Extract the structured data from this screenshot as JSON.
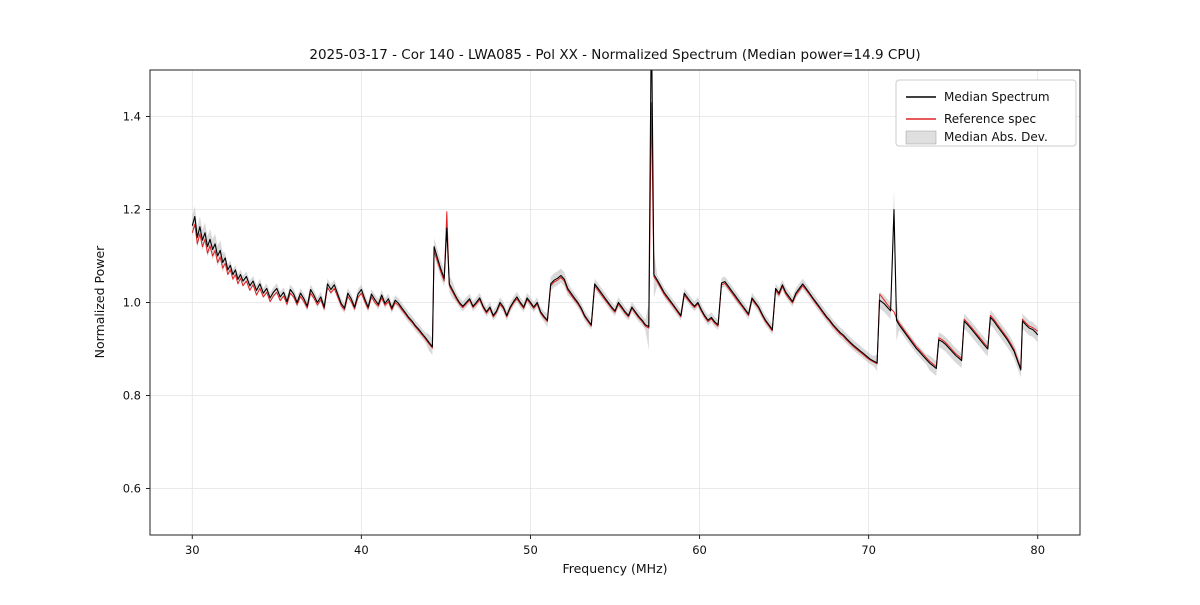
{
  "chart_data": {
    "type": "line",
    "title": "2025-03-17 - Cor 140 - LWA085 - Pol XX - Normalized Spectrum (Median power=14.9 CPU)",
    "xlabel": "Frequency (MHz)",
    "ylabel": "Normalized Power",
    "xlim": [
      27.5,
      82.5
    ],
    "ylim": [
      0.5,
      1.5
    ],
    "xticks": [
      30,
      40,
      50,
      60,
      70,
      80
    ],
    "yticks": [
      0.6,
      0.8,
      1.0,
      1.2,
      1.4
    ],
    "grid": true,
    "colors": {
      "median": "#000000",
      "reference": "#e02222",
      "band": "#b9b9b9",
      "grid": "#e3e3e3"
    },
    "legend": {
      "position": "upper right",
      "entries": [
        {
          "label": "Median Spectrum",
          "color": "#000000",
          "type": "line"
        },
        {
          "label": "Reference spec",
          "color": "#e02222",
          "type": "line"
        },
        {
          "label": "Median Abs. Dev.",
          "color": "#c9c9c9",
          "type": "patch"
        }
      ]
    },
    "mad_default": 0.011,
    "mad_segments": [
      [
        29.5,
        31.8,
        0.022
      ],
      [
        44.0,
        45.5,
        0.018
      ],
      [
        51.0,
        52.3,
        0.015
      ],
      [
        57.0,
        57.4,
        0.05
      ],
      [
        70.5,
        71.3,
        0.018
      ],
      [
        71.3,
        71.7,
        0.045
      ],
      [
        73.5,
        80.5,
        0.016
      ]
    ],
    "points": [
      [
        30.0,
        1.165,
        1.15
      ],
      [
        30.15,
        1.185,
        1.168
      ],
      [
        30.3,
        1.14,
        1.126
      ],
      [
        30.45,
        1.163,
        1.148
      ],
      [
        30.6,
        1.134,
        1.12
      ],
      [
        30.75,
        1.15,
        1.136
      ],
      [
        30.9,
        1.12,
        1.106
      ],
      [
        31.05,
        1.136,
        1.122
      ],
      [
        31.2,
        1.114,
        1.1
      ],
      [
        31.35,
        1.126,
        1.112
      ],
      [
        31.5,
        1.1,
        1.086
      ],
      [
        31.65,
        1.112,
        1.098
      ],
      [
        31.8,
        1.086,
        1.074
      ],
      [
        31.95,
        1.096,
        1.084
      ],
      [
        32.1,
        1.07,
        1.06
      ],
      [
        32.25,
        1.08,
        1.07
      ],
      [
        32.4,
        1.06,
        1.05
      ],
      [
        32.55,
        1.07,
        1.06
      ],
      [
        32.7,
        1.05,
        1.04
      ],
      [
        32.85,
        1.06,
        1.052
      ],
      [
        33.0,
        1.046,
        1.036
      ],
      [
        33.2,
        1.056,
        1.046
      ],
      [
        33.4,
        1.036,
        1.026
      ],
      [
        33.6,
        1.046,
        1.038
      ],
      [
        33.8,
        1.026,
        1.016
      ],
      [
        34.0,
        1.04,
        1.03
      ],
      [
        34.2,
        1.02,
        1.012
      ],
      [
        34.4,
        1.03,
        1.022
      ],
      [
        34.6,
        1.01,
        1.002
      ],
      [
        34.8,
        1.022,
        1.014
      ],
      [
        35.0,
        1.03,
        1.022
      ],
      [
        35.2,
        1.012,
        1.004
      ],
      [
        35.4,
        1.022,
        1.014
      ],
      [
        35.6,
        1.002,
        0.996
      ],
      [
        35.8,
        1.028,
        1.02
      ],
      [
        36.0,
        1.018,
        1.012
      ],
      [
        36.2,
        1.0,
        0.995
      ],
      [
        36.4,
        1.02,
        1.013
      ],
      [
        36.6,
        1.008,
        1.002
      ],
      [
        36.8,
        0.992,
        0.988
      ],
      [
        37.0,
        1.028,
        1.02
      ],
      [
        37.2,
        1.015,
        1.009
      ],
      [
        37.4,
        1.0,
        0.995
      ],
      [
        37.6,
        1.012,
        1.006
      ],
      [
        37.8,
        0.99,
        0.986
      ],
      [
        38.0,
        1.04,
        1.032
      ],
      [
        38.2,
        1.028,
        1.021
      ],
      [
        38.4,
        1.038,
        1.03
      ],
      [
        38.6,
        1.018,
        1.012
      ],
      [
        38.8,
        0.998,
        0.994
      ],
      [
        39.0,
        0.988,
        0.984
      ],
      [
        39.2,
        1.02,
        1.013
      ],
      [
        39.4,
        1.008,
        1.002
      ],
      [
        39.6,
        0.99,
        0.986
      ],
      [
        39.8,
        1.018,
        1.011
      ],
      [
        40.0,
        1.028,
        1.02
      ],
      [
        40.2,
        1.008,
        1.002
      ],
      [
        40.4,
        0.99,
        0.986
      ],
      [
        40.6,
        1.018,
        1.012
      ],
      [
        40.8,
        1.006,
        1.0
      ],
      [
        41.0,
        0.996,
        0.992
      ],
      [
        41.2,
        1.016,
        1.01
      ],
      [
        41.4,
        0.998,
        0.994
      ],
      [
        41.6,
        1.008,
        1.002
      ],
      [
        41.8,
        0.988,
        0.984
      ],
      [
        42.0,
        1.005,
        1.0
      ],
      [
        42.2,
        0.998,
        0.994
      ],
      [
        42.4,
        0.988,
        0.984
      ],
      [
        42.6,
        0.978,
        0.975
      ],
      [
        42.8,
        0.968,
        0.965
      ],
      [
        43.0,
        0.96,
        0.957
      ],
      [
        43.2,
        0.95,
        0.947
      ],
      [
        43.4,
        0.942,
        0.939
      ],
      [
        43.6,
        0.933,
        0.93
      ],
      [
        43.8,
        0.924,
        0.921
      ],
      [
        44.0,
        0.914,
        0.911
      ],
      [
        44.2,
        0.905,
        0.902
      ],
      [
        44.3,
        1.12,
        1.11
      ],
      [
        44.5,
        1.095,
        1.088
      ],
      [
        44.7,
        1.072,
        1.066
      ],
      [
        44.9,
        1.052,
        1.046
      ],
      [
        45.05,
        1.16,
        1.195
      ],
      [
        45.2,
        1.04,
        1.036
      ],
      [
        45.4,
        1.026,
        1.022
      ],
      [
        45.6,
        1.012,
        1.008
      ],
      [
        45.8,
        1.0,
        0.997
      ],
      [
        46.0,
        0.992,
        0.989
      ],
      [
        46.2,
        1.0,
        0.997
      ],
      [
        46.4,
        1.008,
        1.005
      ],
      [
        46.6,
        0.992,
        0.989
      ],
      [
        46.8,
        1.0,
        0.997
      ],
      [
        47.0,
        1.01,
        1.006
      ],
      [
        47.2,
        0.992,
        0.989
      ],
      [
        47.4,
        0.98,
        0.977
      ],
      [
        47.6,
        0.99,
        0.987
      ],
      [
        47.8,
        0.972,
        0.969
      ],
      [
        48.0,
        0.982,
        0.979
      ],
      [
        48.2,
        1.0,
        0.996
      ],
      [
        48.4,
        0.99,
        0.987
      ],
      [
        48.6,
        0.972,
        0.969
      ],
      [
        48.8,
        0.99,
        0.987
      ],
      [
        49.0,
        1.002,
        0.999
      ],
      [
        49.2,
        1.012,
        1.008
      ],
      [
        49.4,
        1.0,
        0.997
      ],
      [
        49.6,
        0.99,
        0.987
      ],
      [
        49.8,
        1.01,
        1.006
      ],
      [
        50.0,
        1.0,
        0.997
      ],
      [
        50.2,
        0.99,
        0.987
      ],
      [
        50.4,
        1.0,
        0.997
      ],
      [
        50.6,
        0.98,
        0.977
      ],
      [
        50.8,
        0.97,
        0.967
      ],
      [
        51.0,
        0.962,
        0.959
      ],
      [
        51.2,
        1.04,
        1.036
      ],
      [
        51.4,
        1.048,
        1.044
      ],
      [
        51.6,
        1.052,
        1.048
      ],
      [
        51.8,
        1.058,
        1.054
      ],
      [
        52.0,
        1.05,
        1.046
      ],
      [
        52.2,
        1.03,
        1.026
      ],
      [
        52.4,
        1.02,
        1.016
      ],
      [
        52.6,
        1.01,
        1.006
      ],
      [
        52.8,
        1.0,
        0.997
      ],
      [
        53.0,
        0.988,
        0.985
      ],
      [
        53.2,
        0.972,
        0.969
      ],
      [
        53.4,
        0.962,
        0.959
      ],
      [
        53.6,
        0.952,
        0.949
      ],
      [
        53.8,
        1.04,
        1.036
      ],
      [
        54.0,
        1.03,
        1.026
      ],
      [
        54.2,
        1.02,
        1.016
      ],
      [
        54.4,
        1.01,
        1.006
      ],
      [
        54.6,
        1.0,
        0.997
      ],
      [
        54.8,
        0.99,
        0.987
      ],
      [
        55.0,
        0.982,
        0.979
      ],
      [
        55.2,
        1.0,
        0.996
      ],
      [
        55.4,
        0.99,
        0.987
      ],
      [
        55.6,
        0.98,
        0.977
      ],
      [
        55.8,
        0.972,
        0.969
      ],
      [
        56.0,
        0.99,
        0.987
      ],
      [
        56.2,
        0.98,
        0.977
      ],
      [
        56.4,
        0.97,
        0.967
      ],
      [
        56.6,
        0.962,
        0.959
      ],
      [
        56.8,
        0.952,
        0.949
      ],
      [
        57.0,
        0.948,
        0.945
      ],
      [
        57.15,
        1.62,
        1.43
      ],
      [
        57.3,
        1.06,
        1.055
      ],
      [
        57.5,
        1.048,
        1.044
      ],
      [
        57.7,
        1.035,
        1.031
      ],
      [
        57.9,
        1.022,
        1.018
      ],
      [
        58.1,
        1.012,
        1.008
      ],
      [
        58.3,
        1.002,
        0.999
      ],
      [
        58.5,
        0.992,
        0.989
      ],
      [
        58.7,
        0.982,
        0.979
      ],
      [
        58.9,
        0.972,
        0.969
      ],
      [
        59.1,
        1.02,
        1.016
      ],
      [
        59.3,
        1.01,
        1.006
      ],
      [
        59.5,
        1.0,
        0.997
      ],
      [
        59.7,
        0.992,
        0.989
      ],
      [
        59.9,
        1.0,
        0.997
      ],
      [
        60.1,
        0.985,
        0.982
      ],
      [
        60.3,
        0.972,
        0.969
      ],
      [
        60.5,
        0.962,
        0.959
      ],
      [
        60.7,
        0.968,
        0.965
      ],
      [
        60.9,
        0.958,
        0.955
      ],
      [
        61.1,
        0.952,
        0.949
      ],
      [
        61.3,
        1.042,
        1.038
      ],
      [
        61.5,
        1.045,
        1.041
      ],
      [
        61.7,
        1.035,
        1.031
      ],
      [
        61.9,
        1.025,
        1.021
      ],
      [
        62.1,
        1.015,
        1.011
      ],
      [
        62.3,
        1.005,
        1.001
      ],
      [
        62.5,
        0.995,
        0.992
      ],
      [
        62.7,
        0.985,
        0.982
      ],
      [
        62.9,
        0.975,
        0.972
      ],
      [
        63.1,
        1.01,
        1.006
      ],
      [
        63.3,
        1.0,
        0.997
      ],
      [
        63.5,
        0.99,
        0.987
      ],
      [
        63.7,
        0.975,
        0.972
      ],
      [
        63.9,
        0.962,
        0.959
      ],
      [
        64.1,
        0.952,
        0.949
      ],
      [
        64.3,
        0.942,
        0.939
      ],
      [
        64.5,
        1.03,
        1.026
      ],
      [
        64.7,
        1.02,
        1.016
      ],
      [
        64.9,
        1.038,
        1.034
      ],
      [
        65.1,
        1.022,
        1.018
      ],
      [
        65.3,
        1.012,
        1.008
      ],
      [
        65.5,
        1.002,
        0.999
      ],
      [
        65.7,
        1.02,
        1.016
      ],
      [
        65.9,
        1.03,
        1.026
      ],
      [
        66.1,
        1.04,
        1.036
      ],
      [
        66.3,
        1.03,
        1.027
      ],
      [
        66.5,
        1.02,
        1.017
      ],
      [
        66.7,
        1.01,
        1.007
      ],
      [
        66.9,
        1.0,
        0.997
      ],
      [
        67.1,
        0.99,
        0.987
      ],
      [
        67.3,
        0.98,
        0.977
      ],
      [
        67.5,
        0.97,
        0.967
      ],
      [
        67.7,
        0.962,
        0.959
      ],
      [
        67.9,
        0.952,
        0.949
      ],
      [
        68.1,
        0.944,
        0.941
      ],
      [
        68.3,
        0.936,
        0.933
      ],
      [
        68.5,
        0.93,
        0.927
      ],
      [
        68.7,
        0.922,
        0.919
      ],
      [
        68.9,
        0.915,
        0.912
      ],
      [
        69.1,
        0.908,
        0.905
      ],
      [
        69.3,
        0.902,
        0.899
      ],
      [
        69.5,
        0.896,
        0.893
      ],
      [
        69.7,
        0.89,
        0.887
      ],
      [
        69.9,
        0.884,
        0.881
      ],
      [
        70.1,
        0.878,
        0.876
      ],
      [
        70.3,
        0.874,
        0.872
      ],
      [
        70.5,
        0.87,
        0.868
      ],
      [
        70.65,
        1.005,
        1.018
      ],
      [
        70.9,
        0.998,
        1.006
      ],
      [
        71.1,
        0.99,
        0.996
      ],
      [
        71.3,
        0.982,
        0.987
      ],
      [
        71.5,
        1.2,
        0.98
      ],
      [
        71.65,
        0.962,
        0.966
      ],
      [
        71.8,
        0.952,
        0.956
      ],
      [
        72.0,
        0.942,
        0.946
      ],
      [
        72.2,
        0.932,
        0.936
      ],
      [
        72.4,
        0.922,
        0.926
      ],
      [
        72.6,
        0.912,
        0.916
      ],
      [
        72.8,
        0.902,
        0.906
      ],
      [
        73.0,
        0.894,
        0.898
      ],
      [
        73.2,
        0.886,
        0.89
      ],
      [
        73.4,
        0.878,
        0.882
      ],
      [
        73.6,
        0.87,
        0.874
      ],
      [
        73.8,
        0.864,
        0.868
      ],
      [
        74.0,
        0.858,
        0.862
      ],
      [
        74.15,
        0.92,
        0.924
      ],
      [
        74.35,
        0.916,
        0.92
      ],
      [
        74.55,
        0.91,
        0.914
      ],
      [
        74.75,
        0.902,
        0.906
      ],
      [
        74.95,
        0.894,
        0.898
      ],
      [
        75.15,
        0.886,
        0.89
      ],
      [
        75.35,
        0.88,
        0.884
      ],
      [
        75.5,
        0.875,
        0.879
      ],
      [
        75.65,
        0.96,
        0.964
      ],
      [
        75.85,
        0.952,
        0.956
      ],
      [
        76.05,
        0.944,
        0.948
      ],
      [
        76.25,
        0.935,
        0.939
      ],
      [
        76.45,
        0.926,
        0.93
      ],
      [
        76.65,
        0.917,
        0.921
      ],
      [
        76.85,
        0.908,
        0.912
      ],
      [
        77.05,
        0.9,
        0.904
      ],
      [
        77.2,
        0.968,
        0.972
      ],
      [
        77.4,
        0.96,
        0.964
      ],
      [
        77.6,
        0.95,
        0.954
      ],
      [
        77.8,
        0.94,
        0.944
      ],
      [
        78.0,
        0.93,
        0.934
      ],
      [
        78.2,
        0.92,
        0.924
      ],
      [
        78.4,
        0.908,
        0.912
      ],
      [
        78.6,
        0.895,
        0.899
      ],
      [
        78.8,
        0.875,
        0.879
      ],
      [
        79.0,
        0.855,
        0.859
      ],
      [
        79.1,
        0.96,
        0.964
      ],
      [
        79.3,
        0.952,
        0.956
      ],
      [
        79.5,
        0.945,
        0.949
      ],
      [
        79.7,
        0.942,
        0.946
      ],
      [
        79.9,
        0.935,
        0.941
      ],
      [
        80.0,
        0.93,
        0.938
      ]
    ]
  }
}
